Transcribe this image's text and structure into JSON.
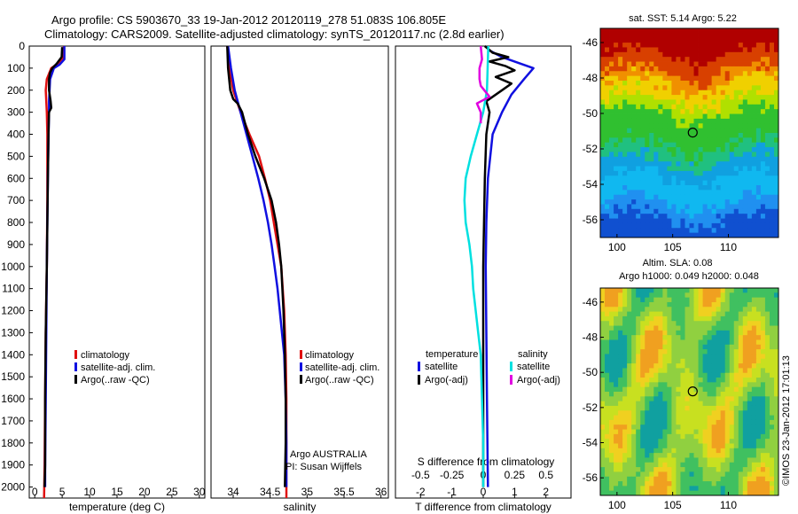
{
  "header": {
    "line1": "Argo profile: CS 5903670_33 19-Jan-2012 20120119_278 51.083S 106.805E",
    "line2": "Climatology: CARS2009. Satellite-adjusted climatology: synTS_20120117.nc (2.8d earlier)"
  },
  "colors": {
    "climatology": "#e01010",
    "satellite": "#1010e0",
    "argo": "#000000",
    "sal_satellite": "#00e0e0",
    "sal_argo": "#e000e0"
  },
  "chart_data": [
    {
      "type": "line",
      "panel": "temperature",
      "xlabel": "temperature (deg C)",
      "ylabel": "",
      "xlim": [
        -1,
        31
      ],
      "ylim": [
        2050,
        0
      ],
      "xticks": [
        "0",
        "5",
        "10",
        "15",
        "20",
        "25",
        "30"
      ],
      "yticks": [
        "0",
        "100",
        "200",
        "300",
        "400",
        "500",
        "600",
        "700",
        "800",
        "900",
        "1000",
        "1100",
        "1200",
        "1300",
        "1400",
        "1500",
        "1600",
        "1700",
        "1800",
        "1900",
        "2000"
      ],
      "legend": {
        "position": "bottom-center",
        "items": [
          "climatology",
          "satellite-adj. clim.",
          "Argo(..raw -QC)"
        ]
      },
      "series": [
        {
          "name": "climatology",
          "color": "#e01010",
          "points": [
            [
              5.3,
              0
            ],
            [
              5.2,
              50
            ],
            [
              4.5,
              75
            ],
            [
              3.0,
              100
            ],
            [
              2.2,
              150
            ],
            [
              2.0,
              200
            ],
            [
              2.1,
              250
            ],
            [
              2.2,
              300
            ],
            [
              2.3,
              400
            ],
            [
              2.3,
              500
            ],
            [
              2.3,
              700
            ],
            [
              2.2,
              1000
            ],
            [
              2.0,
              1300
            ],
            [
              1.9,
              1600
            ],
            [
              1.8,
              1900
            ],
            [
              1.7,
              2050
            ]
          ]
        },
        {
          "name": "satellite-adj. clim.",
          "color": "#1010e0",
          "points": [
            [
              5.4,
              0
            ],
            [
              5.4,
              60
            ],
            [
              4.5,
              85
            ],
            [
              3.5,
              100
            ],
            [
              2.8,
              150
            ],
            [
              2.6,
              250
            ],
            [
              2.6,
              300
            ],
            [
              2.5,
              400
            ],
            [
              2.4,
              600
            ],
            [
              2.3,
              800
            ],
            [
              2.2,
              1000
            ],
            [
              2.1,
              1300
            ],
            [
              2.0,
              1600
            ],
            [
              1.9,
              1900
            ],
            [
              1.9,
              2000
            ]
          ]
        },
        {
          "name": "Argo(..raw -QC)",
          "color": "#000000",
          "points": [
            [
              5.0,
              5
            ],
            [
              4.9,
              50
            ],
            [
              4.0,
              80
            ],
            [
              3.2,
              100
            ],
            [
              2.8,
              120
            ],
            [
              2.6,
              150
            ],
            [
              2.6,
              200
            ],
            [
              2.9,
              250
            ],
            [
              3.0,
              280
            ],
            [
              2.6,
              300
            ],
            [
              2.5,
              400
            ],
            [
              2.4,
              600
            ],
            [
              2.3,
              800
            ],
            [
              2.2,
              1000
            ],
            [
              2.0,
              1300
            ],
            [
              1.9,
              1600
            ],
            [
              1.9,
              1900
            ],
            [
              1.8,
              2000
            ]
          ]
        }
      ]
    },
    {
      "type": "line",
      "panel": "salinity",
      "xlabel": "salinity",
      "ylabel": "",
      "xlim": [
        33.7,
        36.1
      ],
      "ylim": [
        2050,
        0
      ],
      "xticks": [
        "34",
        "34.5",
        "35",
        "35.5",
        "36"
      ],
      "legend": {
        "position": "bottom-right",
        "items": [
          "climatology",
          "satellite-adj. clim.",
          "Argo(..raw -QC)"
        ]
      },
      "annotation": [
        "Argo AUSTRALIA",
        "PI: Susan Wijffels"
      ],
      "series": [
        {
          "name": "climatology",
          "color": "#e01010",
          "points": [
            [
              33.92,
              0
            ],
            [
              33.95,
              100
            ],
            [
              34.0,
              200
            ],
            [
              34.1,
              300
            ],
            [
              34.22,
              400
            ],
            [
              34.35,
              500
            ],
            [
              34.43,
              600
            ],
            [
              34.5,
              700
            ],
            [
              34.55,
              800
            ],
            [
              34.6,
              900
            ],
            [
              34.65,
              1000
            ],
            [
              34.69,
              1200
            ],
            [
              34.71,
              1400
            ],
            [
              34.72,
              1600
            ],
            [
              34.72,
              1800
            ],
            [
              34.72,
              2050
            ]
          ]
        },
        {
          "name": "satellite-adj. clim.",
          "color": "#1010e0",
          "points": [
            [
              33.93,
              0
            ],
            [
              33.97,
              100
            ],
            [
              34.02,
              200
            ],
            [
              34.1,
              300
            ],
            [
              34.18,
              400
            ],
            [
              34.26,
              500
            ],
            [
              34.34,
              600
            ],
            [
              34.41,
              700
            ],
            [
              34.47,
              800
            ],
            [
              34.52,
              900
            ],
            [
              34.56,
              1000
            ],
            [
              34.6,
              1100
            ],
            [
              34.63,
              1200
            ],
            [
              34.66,
              1300
            ],
            [
              34.69,
              1400
            ],
            [
              34.71,
              1600
            ],
            [
              34.72,
              1800
            ],
            [
              34.72,
              2000
            ]
          ]
        },
        {
          "name": "Argo(..raw -QC)",
          "color": "#000000",
          "points": [
            [
              33.92,
              0
            ],
            [
              33.93,
              100
            ],
            [
              33.96,
              200
            ],
            [
              34.0,
              240
            ],
            [
              34.06,
              260
            ],
            [
              34.12,
              300
            ],
            [
              34.2,
              400
            ],
            [
              34.3,
              500
            ],
            [
              34.42,
              600
            ],
            [
              34.52,
              700
            ],
            [
              34.58,
              800
            ],
            [
              34.62,
              900
            ],
            [
              34.65,
              1000
            ],
            [
              34.68,
              1200
            ],
            [
              34.7,
              1400
            ],
            [
              34.71,
              1600
            ],
            [
              34.71,
              1800
            ],
            [
              34.7,
              2000
            ]
          ]
        }
      ]
    },
    {
      "type": "line",
      "panel": "difference",
      "xlabel": "T difference from climatology",
      "ylabel": "",
      "xlim_T": [
        -2.8,
        2.8
      ],
      "xlim_S": [
        -0.7,
        0.7
      ],
      "ylim": [
        2050,
        0
      ],
      "xticks_T": [
        "-2",
        "-1",
        "0",
        "1",
        "2"
      ],
      "xticks_S": [
        "-0.5",
        "-0.25",
        "0",
        "0.25",
        "0.5"
      ],
      "top_xlabel": "S difference from climatology",
      "legend": {
        "position": "bottom-center",
        "temperature_header": "temperature",
        "salinity_header": "salinity",
        "temperature_items": [
          "satellite",
          "Argo(-adj)"
        ],
        "salinity_items": [
          "satellite",
          "Argo(-adj)"
        ]
      },
      "series": [
        {
          "name": "satellite",
          "group": "temperature",
          "color": "#1010e0",
          "points": [
            [
              0.2,
              20
            ],
            [
              0.6,
              50
            ],
            [
              1.2,
              80
            ],
            [
              1.6,
              100
            ],
            [
              1.3,
              150
            ],
            [
              0.9,
              220
            ],
            [
              0.6,
              300
            ],
            [
              0.3,
              400
            ],
            [
              0.15,
              600
            ],
            [
              0.1,
              800
            ],
            [
              0.08,
              1000
            ],
            [
              0.1,
              1300
            ],
            [
              0.12,
              1600
            ],
            [
              0.14,
              1900
            ],
            [
              0.15,
              2000
            ]
          ]
        },
        {
          "name": "Argo(-adj)",
          "group": "temperature",
          "color": "#000000",
          "points": [
            [
              0.05,
              0
            ],
            [
              0.3,
              30
            ],
            [
              0.8,
              50
            ],
            [
              0.2,
              70
            ],
            [
              0.7,
              90
            ],
            [
              1.0,
              110
            ],
            [
              0.4,
              140
            ],
            [
              0.9,
              170
            ],
            [
              0.6,
              200
            ],
            [
              0.1,
              250
            ],
            [
              0.2,
              300
            ],
            [
              0.1,
              400
            ],
            [
              0.05,
              600
            ],
            [
              0.0,
              1000
            ],
            [
              0.0,
              2000
            ]
          ]
        },
        {
          "name": "satellite",
          "group": "salinity",
          "color": "#00e0e0",
          "points": [
            [
              0.04,
              0
            ],
            [
              0.03,
              200
            ],
            [
              0.0,
              300
            ],
            [
              -0.05,
              400
            ],
            [
              -0.1,
              500
            ],
            [
              -0.14,
              600
            ],
            [
              -0.15,
              700
            ],
            [
              -0.14,
              800
            ],
            [
              -0.11,
              900
            ],
            [
              -0.09,
              1000
            ],
            [
              -0.08,
              1100
            ],
            [
              -0.06,
              1200
            ],
            [
              -0.04,
              1300
            ],
            [
              -0.02,
              1400
            ],
            [
              -0.01,
              1600
            ],
            [
              0.0,
              1800
            ],
            [
              0.0,
              2000
            ]
          ]
        },
        {
          "name": "Argo(-adj)",
          "group": "salinity",
          "color": "#e000e0",
          "points": [
            [
              -0.02,
              0
            ],
            [
              -0.01,
              60
            ],
            [
              -0.03,
              100
            ],
            [
              -0.03,
              150
            ],
            [
              -0.02,
              180
            ],
            [
              0.05,
              230
            ],
            [
              -0.05,
              260
            ],
            [
              -0.02,
              300
            ],
            [
              -0.02,
              350
            ]
          ]
        }
      ]
    },
    {
      "type": "heatmap",
      "panel": "sst_map",
      "title": "sat. SST: 5.14  Argo: 5.22",
      "xticks": [
        "100",
        "105",
        "110"
      ],
      "yticks": [
        "-46",
        "-48",
        "-50",
        "-52",
        "-54",
        "-56"
      ],
      "xlim": [
        98.5,
        114.5
      ],
      "ylim": [
        -57,
        -45.2
      ],
      "marker": {
        "lon": 106.8,
        "lat": -51.08
      }
    },
    {
      "type": "heatmap",
      "panel": "sla_map",
      "title": "Altim. SLA: 0.08",
      "subtitle": "Argo h1000: 0.049  h2000: 0.048",
      "xticks": [
        "100",
        "105",
        "110"
      ],
      "yticks": [
        "-46",
        "-48",
        "-50",
        "-52",
        "-54",
        "-56"
      ],
      "xlim": [
        98.5,
        114.5
      ],
      "ylim": [
        -57,
        -45.2
      ],
      "marker": {
        "lon": 106.8,
        "lat": -51.08
      }
    }
  ],
  "credit": "©IMOS 23-Jan-2012 17:01:13"
}
